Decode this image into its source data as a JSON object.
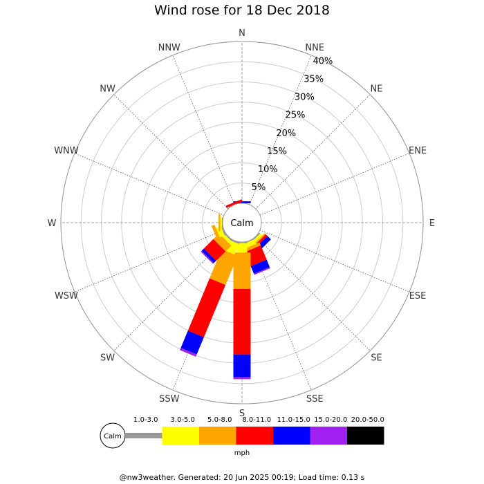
{
  "title": "Wind rose for 18 Dec 2018",
  "footer": "@nw3weather. Generated: 20 Jun 2025 00:19; Load time: 0.13 s",
  "chart_data": {
    "type": "wind-rose",
    "title": "Wind rose for 18 Dec 2018",
    "calm_label": "Calm",
    "directions": [
      "N",
      "NNE",
      "NE",
      "ENE",
      "E",
      "ESE",
      "SE",
      "SSE",
      "S",
      "SSW",
      "SW",
      "WSW",
      "W",
      "WNW",
      "NW",
      "NNW"
    ],
    "radial_ticks": [
      "5%",
      "10%",
      "15%",
      "20%",
      "25%",
      "30%",
      "35%",
      "40%"
    ],
    "radial_values": [
      5,
      10,
      15,
      20,
      25,
      30,
      35,
      40
    ],
    "rmax": 40,
    "speed_unit": "mph",
    "speed_bins": [
      {
        "label": "1.0-3.0",
        "color": "#999999"
      },
      {
        "label": "3.0-5.0",
        "color": "#ffff00"
      },
      {
        "label": "5.0-8.0",
        "color": "#ffa500"
      },
      {
        "label": "8.0-11.0",
        "color": "#ff0000"
      },
      {
        "label": "11.0-15.0",
        "color": "#0000ff"
      },
      {
        "label": "15.0-20.0",
        "color": "#a020f0"
      },
      {
        "label": "20.0-50.0",
        "color": "#000000"
      }
    ],
    "frequencies_percent": {
      "N": [
        0,
        0,
        0,
        0,
        0.5,
        0,
        0
      ],
      "NNE": [
        0,
        0,
        0,
        0,
        0,
        0,
        0
      ],
      "NE": [
        0,
        0,
        0,
        0,
        0,
        0,
        0
      ],
      "ENE": [
        0,
        0,
        0,
        0,
        0,
        0,
        0
      ],
      "E": [
        0,
        0,
        0,
        0,
        0,
        0,
        0
      ],
      "ESE": [
        0,
        0,
        0,
        0,
        0,
        0,
        0
      ],
      "SE": [
        0.3,
        0.7,
        0.4,
        0.6,
        1.2,
        0,
        0
      ],
      "SSE": [
        0.2,
        1.2,
        0.8,
        3.8,
        2.0,
        0.3,
        0
      ],
      "S": [
        0.3,
        2.3,
        9.0,
        16.2,
        5.6,
        0.5,
        0
      ],
      "SSW": [
        0.4,
        2.8,
        7.8,
        14.0,
        4.6,
        0.6,
        0
      ],
      "SW": [
        0.3,
        0.8,
        2.0,
        3.3,
        0.8,
        0.3,
        0
      ],
      "WSW": [
        0.4,
        1.3,
        0.8,
        0,
        0,
        0,
        0
      ],
      "W": [
        0.2,
        0.4,
        0.4,
        0,
        0,
        0,
        0
      ],
      "WNW": [
        0,
        0,
        0,
        0,
        0,
        0,
        0
      ],
      "NW": [
        0,
        0,
        0,
        0,
        0,
        0,
        0
      ],
      "NNW": [
        0,
        0,
        0,
        0.6,
        0,
        0,
        0
      ]
    }
  }
}
